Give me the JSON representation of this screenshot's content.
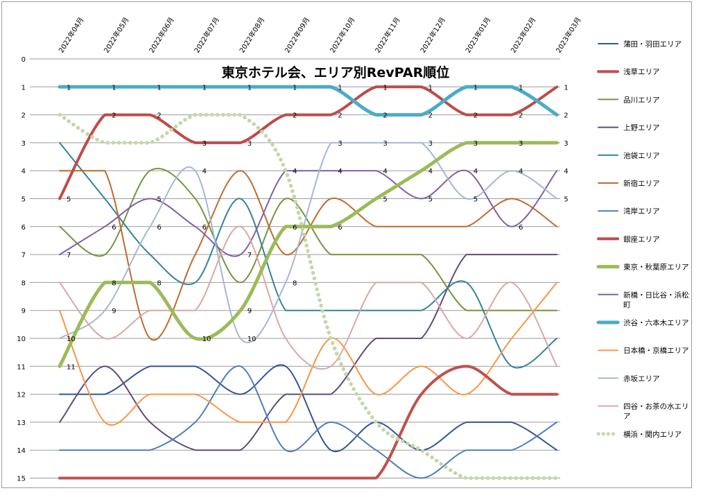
{
  "chart_data": {
    "type": "line",
    "title": "東京ホテル会、エリア別RevPAR順位",
    "categories": [
      "2022年04月",
      "2022年05月",
      "2022年06月",
      "2022年07月",
      "2022年08月",
      "2022年09月",
      "2022年10月",
      "2022年11月",
      "2022年12月",
      "2023年01月",
      "2023年02月",
      "2023年03月"
    ],
    "y_ticks": [
      "0",
      "1",
      "2",
      "3",
      "4",
      "5",
      "6",
      "7",
      "8",
      "9",
      "10",
      "11",
      "12",
      "13",
      "14",
      "15"
    ],
    "ylim": [
      0,
      15
    ],
    "y_reversed": true,
    "grid": true,
    "legend_position": "right",
    "series": [
      {
        "name": "蒲田・羽田エリア",
        "color": "#2f5597",
        "width": 2,
        "values": [
          12,
          12,
          11,
          11,
          12,
          11,
          14,
          13,
          14,
          13,
          13,
          14
        ]
      },
      {
        "name": "浅草エリア",
        "color": "#c0504d",
        "width": 4,
        "values": [
          15,
          15,
          15,
          15,
          15,
          15,
          15,
          15,
          12,
          11,
          12,
          12
        ]
      },
      {
        "name": "品川エリア",
        "color": "#77933c",
        "width": 2,
        "values": [
          6,
          7,
          4,
          5,
          8,
          5,
          7,
          7,
          7,
          9,
          9,
          9
        ]
      },
      {
        "name": "上野エリア",
        "color": "#604a7b",
        "width": 2,
        "values": [
          13,
          11,
          13,
          14,
          14,
          12,
          12,
          10,
          10,
          7,
          7,
          7
        ]
      },
      {
        "name": "池袋エリア",
        "color": "#31849b",
        "width": 2,
        "values": [
          3,
          5,
          7,
          8,
          5,
          9,
          9,
          9,
          9,
          8,
          11,
          10
        ]
      },
      {
        "name": "新宿エリア",
        "color": "#c0692c",
        "width": 2,
        "values": [
          4,
          4,
          10,
          7,
          4,
          7,
          5,
          6,
          6,
          6,
          5,
          6
        ]
      },
      {
        "name": "湾岸エリア",
        "color": "#4a7ebb",
        "width": 2,
        "values": [
          14,
          14,
          14,
          13,
          11,
          14,
          13,
          14,
          15,
          14,
          14,
          13
        ]
      },
      {
        "name": "銀座エリア",
        "color": "#be4b48",
        "width": 4,
        "values": [
          5,
          2,
          2,
          3,
          3,
          2,
          2,
          1,
          1,
          2,
          2,
          1
        ],
        "labels": true
      },
      {
        "name": "東京・秋葉原エリア",
        "color": "#9bbb59",
        "width": 5,
        "values": [
          11,
          8,
          8,
          10,
          9,
          6,
          6,
          5,
          4,
          3,
          3,
          3
        ],
        "labels": true
      },
      {
        "name": "新橋・日比谷・浜松町",
        "color": "#7f5fa8",
        "width": 2,
        "values": [
          7,
          6,
          5,
          6,
          7,
          4,
          4,
          4,
          5,
          4,
          6,
          4
        ],
        "labels": true
      },
      {
        "name": "渋谷・六本木エリア",
        "color": "#4bacc6",
        "width": 5,
        "values": [
          1,
          1,
          1,
          1,
          1,
          1,
          1,
          2,
          2,
          1,
          1,
          2
        ],
        "labels": true
      },
      {
        "name": "日本橋・京橋エリア",
        "color": "#f79646",
        "width": 2,
        "values": [
          9,
          13,
          12,
          12,
          13,
          13,
          10,
          12,
          11,
          12,
          10,
          8
        ]
      },
      {
        "name": "赤坂エリア",
        "color": "#a5b6d5",
        "width": 2,
        "values": [
          10,
          9,
          6,
          4,
          10,
          8,
          3,
          3,
          3,
          5,
          4,
          5
        ],
        "labels": true
      },
      {
        "name": "四谷・お茶の水エリア",
        "color": "#d9a7a6",
        "width": 2,
        "values": [
          8,
          10,
          9,
          9,
          6,
          10,
          11,
          8,
          8,
          10,
          8,
          11
        ]
      },
      {
        "name": "横浜・関内エリア",
        "color": "#c4d7a8",
        "width": 5,
        "dashed": true,
        "values": [
          2,
          3,
          3,
          2,
          2,
          4,
          10,
          13,
          14,
          15,
          15,
          15
        ]
      }
    ]
  }
}
